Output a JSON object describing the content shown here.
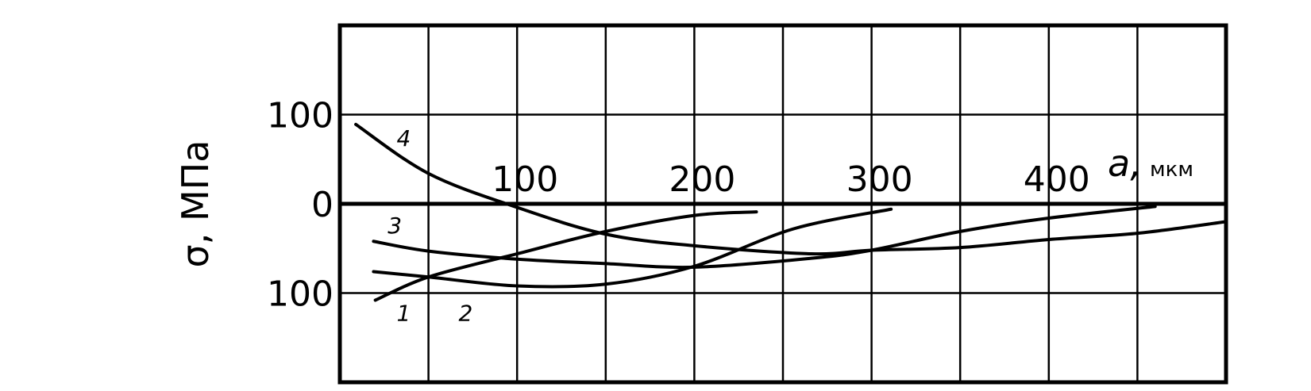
{
  "chart_data": {
    "type": "line",
    "title": "",
    "xlabel": "a, мкм",
    "xlabel_symbol": "a,",
    "xlabel_unit": "мкм",
    "ylabel": "σ, МПа",
    "xlim": [
      0,
      500
    ],
    "ylim": [
      -200,
      200
    ],
    "x_gridlines": [
      50,
      100,
      150,
      200,
      250,
      300,
      350,
      400,
      450
    ],
    "y_gridlines": [
      100,
      0,
      -100
    ],
    "grid": true,
    "x_tick_labels": [
      "100",
      "200",
      "300",
      "400"
    ],
    "x_ticks": [
      100,
      200,
      300,
      400
    ],
    "y_tick_labels": [
      "100",
      "0",
      "100"
    ],
    "y_ticks": [
      100,
      0,
      -100
    ],
    "colors": {
      "line": "#000000",
      "background": "#ffffff"
    },
    "series": [
      {
        "name": "1",
        "x": [
          20,
          50,
          100,
          150,
          200,
          235
        ],
        "y": [
          -108,
          -82,
          -56,
          -31,
          -13,
          -9
        ]
      },
      {
        "name": "2",
        "x": [
          19,
          50,
          100,
          150,
          200,
          256,
          311
        ],
        "y": [
          -76,
          -82,
          -92,
          -90,
          -70,
          -28,
          -6
        ]
      },
      {
        "name": "3",
        "x": [
          19,
          50,
          100,
          150,
          200,
          266,
          300,
          350,
          400,
          460
        ],
        "y": [
          -42,
          -53,
          -62,
          -67,
          -71,
          -61,
          -52,
          -31,
          -16,
          -3
        ]
      },
      {
        "name": "4",
        "x": [
          9,
          50,
          100,
          150,
          200,
          266,
          300,
          350,
          400,
          450,
          500
        ],
        "y": [
          89,
          34,
          -4,
          -34,
          -47,
          -56,
          -52,
          -49,
          -40,
          -33,
          -20
        ]
      }
    ],
    "curve_labels": [
      {
        "text": "1",
        "x": 36,
        "y": -122
      },
      {
        "text": "2",
        "x": 71,
        "y": -122
      },
      {
        "text": "3",
        "x": 31,
        "y": -24
      },
      {
        "text": "4",
        "x": 36,
        "y": 74
      }
    ]
  }
}
